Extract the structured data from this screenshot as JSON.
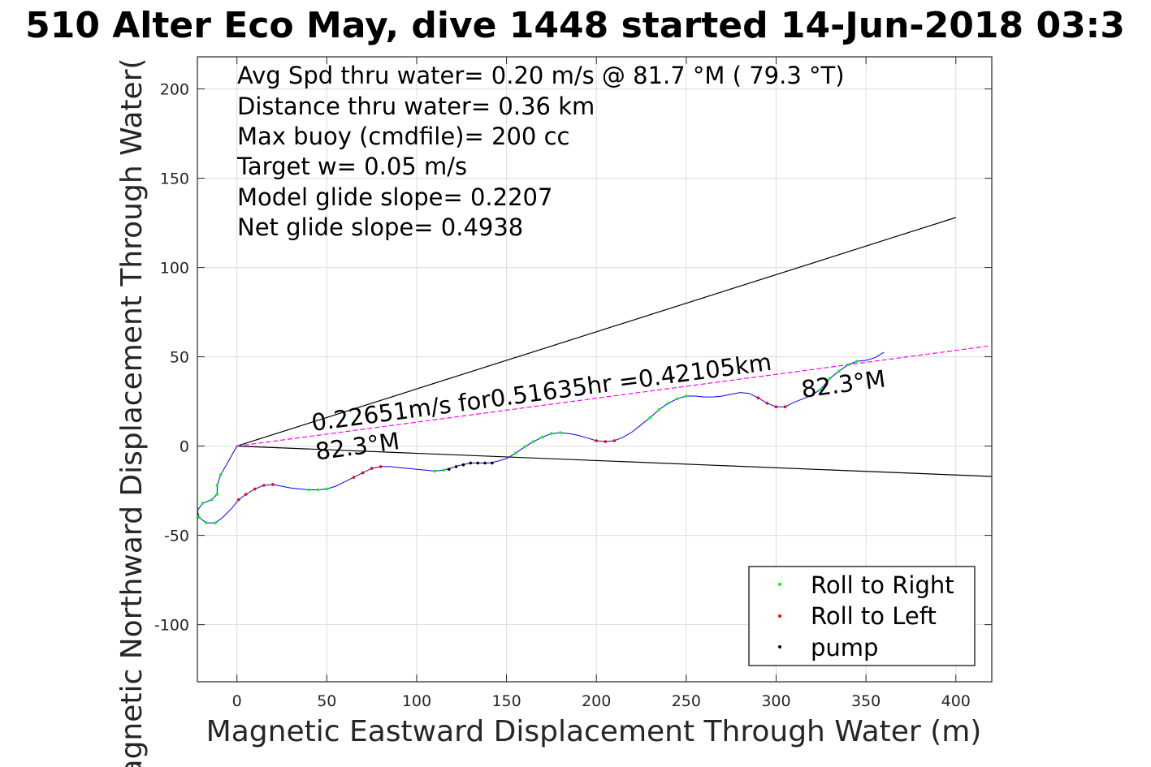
{
  "chart_data": {
    "type": "line",
    "title": "510 Alter Eco May, dive 1448 started 14-Jun-2018 03:3",
    "xlabel": "Magnetic Eastward Displacement Through Water (m)",
    "ylabel": "Magnetic Northward Displacement Through Water(",
    "xlim": [
      -22,
      420
    ],
    "ylim": [
      -132,
      218
    ],
    "xticks": [
      0,
      50,
      100,
      150,
      200,
      250,
      300,
      350,
      400
    ],
    "yticks": [
      -100,
      -50,
      0,
      50,
      100,
      150,
      200
    ],
    "grid": true,
    "legend_position": "bottom-right",
    "text_block": [
      "Avg Spd thru water=  0.20 m/s @  81.7 °M ( 79.3 °T)",
      "Distance thru water=  0.36 km",
      "Max buoy (cmdfile)= 200 cc",
      "Target w= 0.05 m/s",
      "Model glide slope= 0.2207",
      "Net glide slope= 0.4938"
    ],
    "annotations": {
      "current_line1": "0.22651m/s for0.51635hr =0.42105km",
      "current_line2": "82.3°M",
      "end_heading": "82.3°M"
    },
    "guide_lines": [
      {
        "name": "",
        "color": "#000000",
        "points": [
          [
            0,
            0
          ],
          [
            400,
            128
          ]
        ]
      },
      {
        "name": "",
        "color": "#000000",
        "points": [
          [
            0,
            0
          ],
          [
            420,
            -17
          ]
        ]
      },
      {
        "name": "",
        "color": "#ff00ff",
        "dashed": true,
        "points": [
          [
            0,
            0
          ],
          [
            418,
            56
          ]
        ]
      }
    ],
    "track": {
      "name": "",
      "color": "#0000ff",
      "points": [
        [
          0,
          0
        ],
        [
          -5,
          -9
        ],
        [
          -9,
          -16
        ],
        [
          -11,
          -22
        ],
        [
          -11,
          -27
        ],
        [
          -14,
          -30
        ],
        [
          -19,
          -32
        ],
        [
          -22,
          -36
        ],
        [
          -21,
          -40
        ],
        [
          -17,
          -43
        ],
        [
          -12,
          -43
        ],
        [
          -8,
          -40
        ],
        [
          -3,
          -35
        ],
        [
          1,
          -30
        ],
        [
          5,
          -27
        ],
        [
          10,
          -24
        ],
        [
          15,
          -22
        ],
        [
          20,
          -21.5
        ],
        [
          25,
          -22.5
        ],
        [
          30,
          -23.5
        ],
        [
          35,
          -24
        ],
        [
          40,
          -24.5
        ],
        [
          45,
          -24.5
        ],
        [
          50,
          -24
        ],
        [
          55,
          -22.5
        ],
        [
          60,
          -20
        ],
        [
          65,
          -17.5
        ],
        [
          70,
          -15
        ],
        [
          75,
          -12.5
        ],
        [
          80,
          -11.5
        ],
        [
          85,
          -11.5
        ],
        [
          90,
          -12
        ],
        [
          95,
          -12.5
        ],
        [
          100,
          -13
        ],
        [
          105,
          -13.5
        ],
        [
          110,
          -14
        ],
        [
          115,
          -13.5
        ],
        [
          120,
          -12
        ],
        [
          125,
          -10.5
        ],
        [
          130,
          -9.5
        ],
        [
          135,
          -9.5
        ],
        [
          140,
          -9.5
        ],
        [
          145,
          -8.5
        ],
        [
          150,
          -7
        ],
        [
          155,
          -4
        ],
        [
          160,
          -0.5
        ],
        [
          165,
          2.5
        ],
        [
          170,
          5
        ],
        [
          175,
          7
        ],
        [
          180,
          7.5
        ],
        [
          185,
          7
        ],
        [
          190,
          6
        ],
        [
          195,
          4.5
        ],
        [
          200,
          3
        ],
        [
          205,
          2.5
        ],
        [
          210,
          3
        ],
        [
          215,
          5
        ],
        [
          220,
          8
        ],
        [
          225,
          12
        ],
        [
          230,
          16
        ],
        [
          235,
          20.5
        ],
        [
          240,
          24
        ],
        [
          245,
          26.5
        ],
        [
          250,
          28
        ],
        [
          255,
          28
        ],
        [
          260,
          27.5
        ],
        [
          265,
          27.5
        ],
        [
          270,
          28
        ],
        [
          275,
          29
        ],
        [
          280,
          30
        ],
        [
          285,
          29.5
        ],
        [
          290,
          27
        ],
        [
          295,
          24
        ],
        [
          300,
          22
        ],
        [
          305,
          22
        ],
        [
          310,
          24.5
        ],
        [
          315,
          26.5
        ],
        [
          320,
          28.5
        ],
        [
          325,
          32
        ],
        [
          330,
          38
        ],
        [
          335,
          42
        ],
        [
          340,
          45.5
        ],
        [
          345,
          47.5
        ],
        [
          350,
          48
        ],
        [
          355,
          49.5
        ],
        [
          360,
          52.5
        ]
      ]
    },
    "series": [
      {
        "name": "Roll to Right",
        "color": "#00ff00",
        "points": [
          [
            -9,
            -16
          ],
          [
            -11,
            -22
          ],
          [
            -11,
            -27
          ],
          [
            -14,
            -30
          ],
          [
            -19,
            -32
          ],
          [
            -22,
            -36
          ],
          [
            -21,
            -40
          ],
          [
            -17,
            -43
          ],
          [
            -12,
            -43
          ],
          [
            40,
            -24.5
          ],
          [
            45,
            -24.5
          ],
          [
            50,
            -24
          ],
          [
            110,
            -14
          ],
          [
            115,
            -13.5
          ],
          [
            155,
            -4
          ],
          [
            160,
            -0.5
          ],
          [
            165,
            2.5
          ],
          [
            170,
            5
          ],
          [
            175,
            7
          ],
          [
            180,
            7.5
          ],
          [
            230,
            16
          ],
          [
            235,
            20.5
          ],
          [
            240,
            24
          ],
          [
            245,
            26.5
          ],
          [
            250,
            28
          ],
          [
            325,
            32
          ],
          [
            330,
            38
          ],
          [
            335,
            42
          ],
          [
            340,
            45.5
          ],
          [
            345,
            47.5
          ]
        ]
      },
      {
        "name": "Roll to Left",
        "color": "#ff0000",
        "points": [
          [
            1,
            -30
          ],
          [
            5,
            -27
          ],
          [
            10,
            -24
          ],
          [
            15,
            -22
          ],
          [
            20,
            -21.5
          ],
          [
            65,
            -17.5
          ],
          [
            70,
            -15
          ],
          [
            75,
            -12.5
          ],
          [
            80,
            -11.5
          ],
          [
            200,
            3
          ],
          [
            205,
            2.5
          ],
          [
            210,
            3
          ],
          [
            290,
            27
          ],
          [
            295,
            24
          ],
          [
            300,
            22
          ],
          [
            305,
            22
          ]
        ]
      },
      {
        "name": "pump",
        "color": "#000000",
        "points": [
          [
            118,
            -13
          ],
          [
            122,
            -11.5
          ],
          [
            126,
            -10.5
          ],
          [
            130,
            -9.5
          ],
          [
            134,
            -9.5
          ],
          [
            138,
            -9.5
          ],
          [
            142,
            -9.5
          ]
        ]
      }
    ]
  }
}
